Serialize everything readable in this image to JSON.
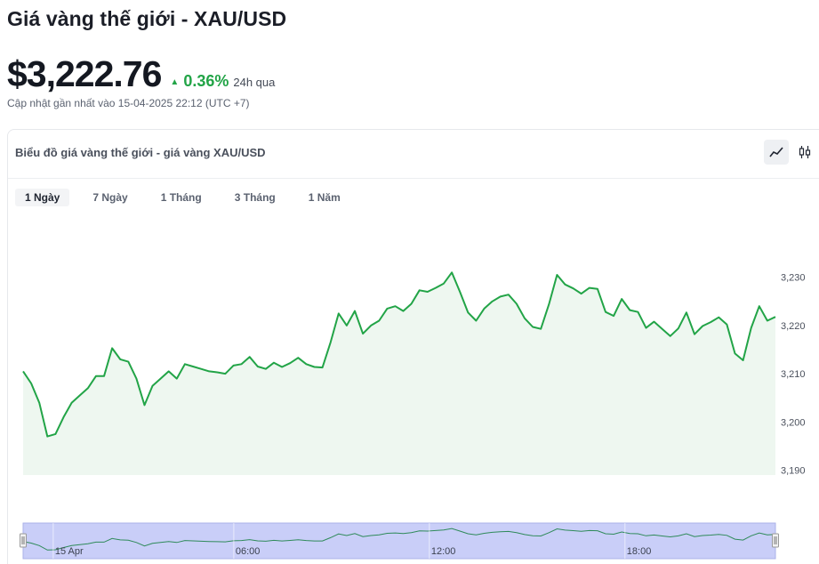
{
  "header": {
    "title": "Giá vàng thế giới - XAU/USD",
    "price": "$3,222.76",
    "change_percent": "0.36%",
    "change_period": "24h qua",
    "updated": "Cập nhật gần nhất vào 15-04-2025 22:12 (UTC +7)"
  },
  "card": {
    "title": "Biểu đồ giá vàng thế giới - giá vàng XAU/USD",
    "view_toggle": [
      {
        "icon": "line-chart-icon",
        "active": true
      },
      {
        "icon": "candlestick-icon",
        "active": false
      }
    ],
    "range_tabs": [
      {
        "label": "1 Ngày",
        "active": true
      },
      {
        "label": "7 Ngày",
        "active": false
      },
      {
        "label": "1 Tháng",
        "active": false
      },
      {
        "label": "3 Tháng",
        "active": false
      },
      {
        "label": "1 Năm",
        "active": false
      }
    ]
  },
  "colors": {
    "accent_up": "#22a447",
    "line": "#22a447",
    "area": "#eef7f0",
    "navigator": "#c9cef8"
  },
  "chart_data": {
    "type": "area",
    "ylim": [
      3189,
      3234
    ],
    "y_ticks": [
      "3,190",
      "3,200",
      "3,210",
      "3,220",
      "3,230"
    ],
    "y_tick_values": [
      3190,
      3200,
      3210,
      3220,
      3230
    ],
    "navigator_labels": [
      "15 Apr",
      "06:00",
      "12:00",
      "18:00"
    ],
    "navigator_label_positions": [
      4,
      28,
      54,
      80
    ],
    "values": [
      3210.5,
      3208,
      3204,
      3197,
      3197.5,
      3201,
      3204,
      3205.5,
      3207,
      3209.5,
      3209.5,
      3215.3,
      3213,
      3212.5,
      3209,
      3203.5,
      3207.5,
      3209,
      3210.5,
      3209,
      3212,
      3211.5,
      3211,
      3210.5,
      3210.3,
      3210,
      3211.7,
      3212,
      3213.5,
      3211.5,
      3211,
      3212.3,
      3211.4,
      3212.2,
      3213.3,
      3212,
      3211.4,
      3211.3,
      3216.5,
      3222.5,
      3220,
      3223,
      3218.3,
      3220,
      3221,
      3223.5,
      3224,
      3223,
      3224.5,
      3227.3,
      3227,
      3227.8,
      3228.7,
      3231,
      3227,
      3222.7,
      3221,
      3223.5,
      3225,
      3226,
      3226.4,
      3224.5,
      3221.5,
      3219.7,
      3219.3,
      3224.4,
      3230.5,
      3228.5,
      3227.7,
      3226.6,
      3227.8,
      3227.6,
      3222.8,
      3222,
      3225.5,
      3223.2,
      3222.8,
      3219.5,
      3220.8,
      3219.3,
      3217.8,
      3219.4,
      3222.7,
      3218.2,
      3219.9,
      3220.7,
      3221.7,
      3220.2,
      3214.2,
      3212.8,
      3219.5,
      3224,
      3221,
      3221.8
    ]
  }
}
